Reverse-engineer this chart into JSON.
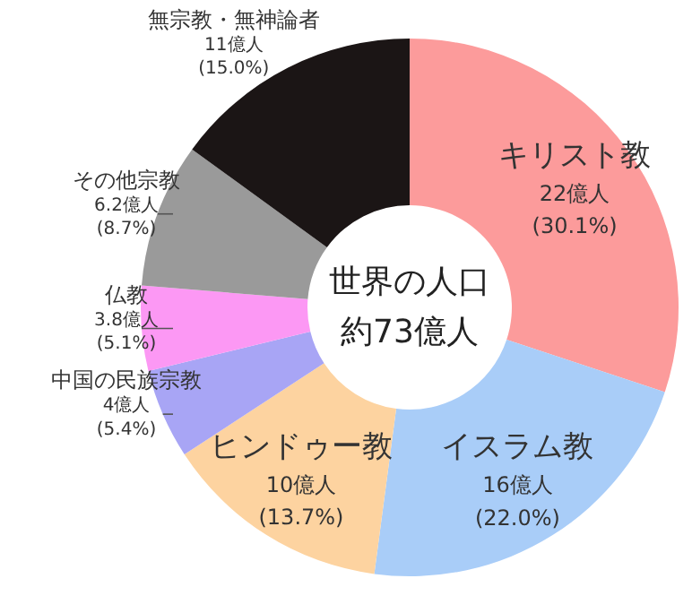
{
  "chart_data": {
    "type": "donut",
    "title": "世界の人口",
    "subtitle": "約73億人",
    "categories": [
      "キリスト教",
      "イスラム教",
      "ヒンドゥー教",
      "中国の民族宗教",
      "仏教",
      "その他宗教",
      "無宗教・無神論者"
    ],
    "values": [
      30.1,
      22.0,
      13.7,
      5.4,
      5.1,
      8.7,
      15.0
    ],
    "value_labels": [
      "22億人\n(30.1%)",
      "16億人\n(22.0%)",
      "10億人\n(13.7%)",
      "4億人\n(5.4%)",
      "3.8億人\n(5.1%)",
      "6.2億人\n(8.7%)",
      "11億人\n(15.0%)"
    ],
    "colors": [
      "#fc9b9b",
      "#a9cdf8",
      "#fdd3a0",
      "#a8a5f5",
      "#fc98f4",
      "#9a9a9a",
      "#1b1515"
    ]
  }
}
